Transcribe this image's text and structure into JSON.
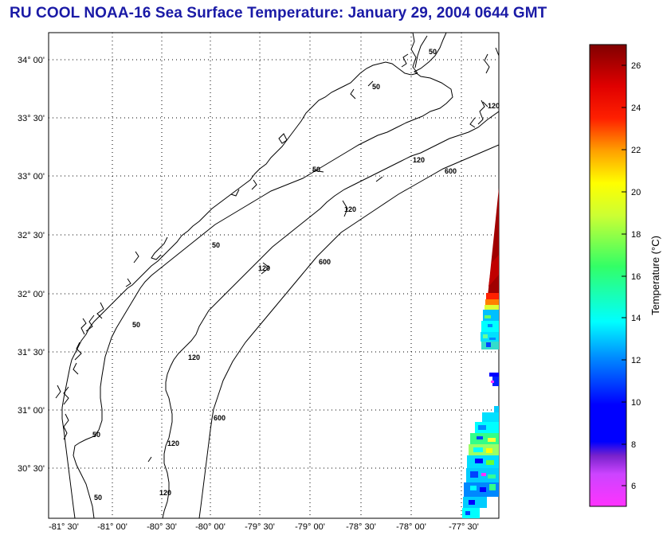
{
  "title": "RU COOL  NOAA-16  Sea Surface Temperature:  January 29, 2004 0644 GMT",
  "map": {
    "lat_labels": [
      "34° 00'",
      "33° 30'",
      "33° 00'",
      "32° 30'",
      "32° 00'",
      "31° 30'",
      "31° 00'",
      "30° 30'"
    ],
    "lon_labels": [
      "-81° 30'",
      "-81° 00'",
      "-80° 30'",
      "-80° 00'",
      "-79° 30'",
      "-79° 00'",
      "-78° 30'",
      "-78° 00'",
      "-77° 30'"
    ],
    "contour_labels": [
      "50",
      "50",
      "50",
      "50",
      "50",
      "50",
      "50",
      "120",
      "120",
      "120",
      "120",
      "120",
      "120",
      "120",
      "600",
      "600",
      "600"
    ]
  },
  "colorbar": {
    "label": "Temperature (°C)",
    "ticks": [
      "26",
      "24",
      "22",
      "20",
      "18",
      "16",
      "14",
      "12",
      "10",
      "8",
      "6"
    ],
    "colors": {
      "low": "#ff33ff",
      "mid_blue": "#0000ff",
      "cyan": "#00ffff",
      "green": "#33ff66",
      "yellow": "#ffff00",
      "orange": "#ff8000",
      "red": "#ff0000",
      "dark_red": "#800000"
    }
  }
}
